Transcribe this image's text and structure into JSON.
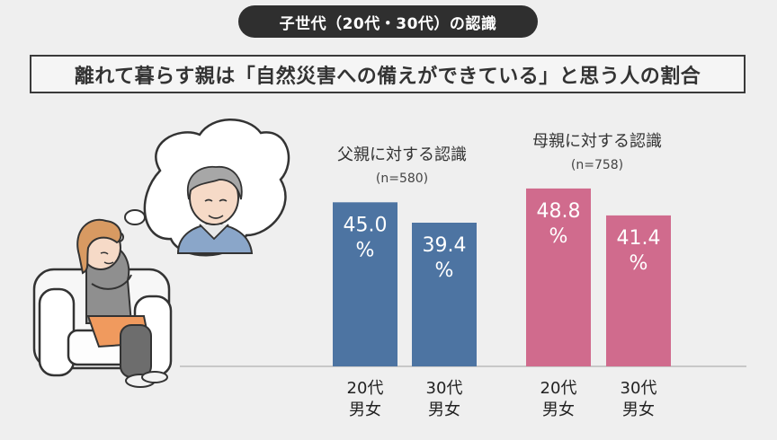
{
  "header": {
    "tab": "子世代（20代・30代）の認識"
  },
  "title": "離れて暮らす親は「自然災害への備えができている」と思う人の割合",
  "colors": {
    "father": "#4d74a2",
    "mother": "#d06b8d",
    "baseline": "#bbbbbb"
  },
  "chart_data": {
    "type": "bar",
    "unit": "%",
    "ylim": [
      0,
      60
    ],
    "groups": [
      {
        "title": "父親に対する認識",
        "n": "(n=580)",
        "color": "#4d74a2",
        "bars": [
          {
            "line1": "20代",
            "line2": "男女",
            "value": 45.0,
            "label": "45.0"
          },
          {
            "line1": "30代",
            "line2": "男女",
            "value": 39.4,
            "label": "39.4"
          }
        ]
      },
      {
        "title": "母親に対する認識",
        "n": "(n=758)",
        "color": "#d06b8d",
        "bars": [
          {
            "line1": "20代",
            "line2": "男女",
            "value": 48.8,
            "label": "48.8"
          },
          {
            "line1": "30代",
            "line2": "男女",
            "value": 41.4,
            "label": "41.4"
          }
        ]
      }
    ]
  }
}
